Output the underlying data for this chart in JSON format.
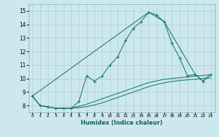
{
  "title": "",
  "xlabel": "Humidex (Indice chaleur)",
  "background_color": "#cce8ee",
  "grid_color": "#b0cfd6",
  "line_color": "#1a7a6e",
  "xlim": [
    -0.5,
    23.5
  ],
  "ylim": [
    7.5,
    15.5
  ],
  "yticks": [
    8,
    9,
    10,
    11,
    12,
    13,
    14,
    15
  ],
  "xticks": [
    0,
    1,
    2,
    3,
    4,
    5,
    6,
    7,
    8,
    9,
    10,
    11,
    12,
    13,
    14,
    15,
    16,
    17,
    18,
    19,
    20,
    21,
    22,
    23
  ],
  "series1_x": [
    0,
    1,
    2,
    3,
    4,
    5,
    6,
    7,
    8,
    9,
    10,
    11,
    12,
    13,
    14,
    15,
    16,
    17,
    18,
    19,
    20,
    21,
    22,
    23
  ],
  "series1_y": [
    8.7,
    8.0,
    7.9,
    7.8,
    7.8,
    7.8,
    8.3,
    10.2,
    9.8,
    10.2,
    11.0,
    11.6,
    12.8,
    13.7,
    14.2,
    14.9,
    14.7,
    14.2,
    12.6,
    11.5,
    10.2,
    10.3,
    9.8,
    10.3
  ],
  "series2_x": [
    0,
    1,
    2,
    3,
    4,
    5,
    6,
    7,
    8,
    9,
    10,
    11,
    12,
    13,
    14,
    15,
    16,
    17,
    18,
    19,
    20,
    21,
    22,
    23
  ],
  "series2_y": [
    8.7,
    8.0,
    7.9,
    7.8,
    7.8,
    7.8,
    7.95,
    8.1,
    8.3,
    8.5,
    8.7,
    8.9,
    9.1,
    9.3,
    9.5,
    9.7,
    9.82,
    9.94,
    10.0,
    10.06,
    10.12,
    10.18,
    10.22,
    10.28
  ],
  "series3_x": [
    0,
    1,
    2,
    3,
    4,
    5,
    6,
    7,
    8,
    9,
    10,
    11,
    12,
    13,
    14,
    15,
    16,
    17,
    18,
    19,
    20,
    21,
    22,
    23
  ],
  "series3_y": [
    8.7,
    8.0,
    7.9,
    7.8,
    7.8,
    7.8,
    7.85,
    7.92,
    8.05,
    8.2,
    8.4,
    8.6,
    8.8,
    9.0,
    9.2,
    9.4,
    9.55,
    9.68,
    9.78,
    9.85,
    9.9,
    9.95,
    10.0,
    10.05
  ],
  "series4_x": [
    0,
    15,
    17,
    21,
    22,
    23
  ],
  "series4_y": [
    8.7,
    14.9,
    14.2,
    10.3,
    9.8,
    10.3
  ]
}
